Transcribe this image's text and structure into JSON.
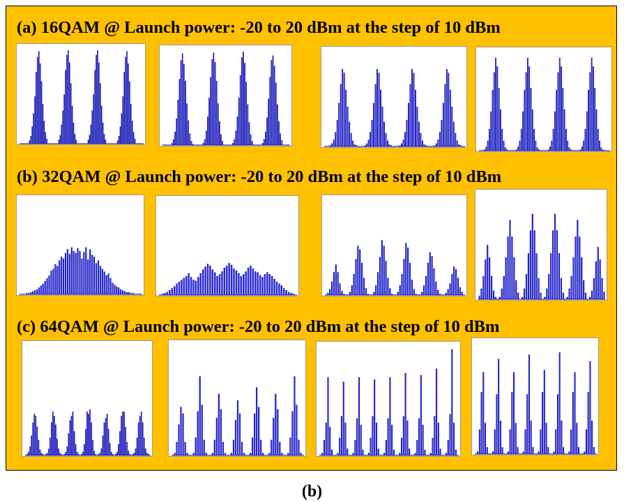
{
  "caption": "(b)",
  "colors": {
    "panel_bg": "#ffc000",
    "bar_fill": "#3333ff",
    "bar_stroke": "#00008b"
  },
  "rows": [
    {
      "title": "(a) 16QAM @ Launch power: -20 to 20 dBm at the step of 10 dBm"
    },
    {
      "title": "(b) 32QAM @ Launch power: -20 to 20 dBm at the step of 10 dBm"
    },
    {
      "title": "(c) 64QAM @ Launch power: -20 to 20 dBm at the step of 10 dBm"
    }
  ],
  "chart_data": [
    {
      "type": "bar",
      "title": "",
      "xlabel": "",
      "ylabel": "",
      "grid": false,
      "ylim": [
        0,
        1
      ],
      "values": [
        0,
        0,
        0,
        0,
        0,
        0,
        0,
        0.03,
        0.08,
        0.18,
        0.32,
        0.5,
        0.76,
        0.92,
        0.98,
        0.85,
        0.66,
        0.42,
        0.24,
        0.12,
        0.05,
        0,
        0,
        0,
        0,
        0,
        0,
        0,
        0,
        0.04,
        0.09,
        0.2,
        0.35,
        0.52,
        0.78,
        0.94,
        0.99,
        0.86,
        0.64,
        0.4,
        0.22,
        0.1,
        0.04,
        0,
        0,
        0,
        0,
        0,
        0,
        0,
        0,
        0.04,
        0.09,
        0.2,
        0.35,
        0.52,
        0.78,
        0.94,
        0.99,
        0.86,
        0.64,
        0.4,
        0.22,
        0.1,
        0.04,
        0,
        0,
        0,
        0,
        0,
        0,
        0,
        0,
        0.03,
        0.08,
        0.18,
        0.32,
        0.5,
        0.76,
        0.92,
        0.98,
        0.85,
        0.66,
        0.42,
        0.24,
        0.12,
        0.05,
        0,
        0,
        0,
        0,
        0,
        0
      ]
    },
    {
      "type": "bar",
      "title": "",
      "xlabel": "",
      "ylabel": "",
      "grid": false,
      "ylim": [
        0,
        1
      ],
      "values": [
        0,
        0,
        0,
        0,
        0,
        0,
        0.02,
        0.06,
        0.14,
        0.28,
        0.48,
        0.7,
        0.9,
        0.97,
        0.86,
        0.68,
        0.44,
        0.26,
        0.12,
        0.04,
        0.01,
        0,
        0,
        0,
        0,
        0,
        0,
        0.02,
        0.06,
        0.15,
        0.3,
        0.5,
        0.72,
        0.91,
        0.98,
        0.88,
        0.68,
        0.44,
        0.25,
        0.11,
        0.04,
        0,
        0,
        0,
        0,
        0,
        0,
        0.02,
        0.06,
        0.15,
        0.3,
        0.5,
        0.74,
        0.93,
        0.99,
        0.87,
        0.67,
        0.43,
        0.24,
        0.11,
        0.04,
        0,
        0,
        0,
        0,
        0,
        0,
        0.02,
        0.06,
        0.14,
        0.29,
        0.49,
        0.72,
        0.9,
        0.95,
        0.84,
        0.66,
        0.43,
        0.25,
        0.12,
        0.05,
        0,
        0,
        0,
        0,
        0
      ]
    },
    {
      "type": "bar",
      "title": "",
      "xlabel": "",
      "ylabel": "",
      "grid": false,
      "ylim": [
        0,
        1
      ],
      "values": [
        0,
        0,
        0,
        0.01,
        0.03,
        0.07,
        0.15,
        0.28,
        0.46,
        0.66,
        0.82,
        0.78,
        0.6,
        0.42,
        0.26,
        0.14,
        0.06,
        0.02,
        0.01,
        0,
        0,
        0,
        0,
        0.01,
        0.03,
        0.07,
        0.15,
        0.28,
        0.46,
        0.66,
        0.82,
        0.78,
        0.6,
        0.42,
        0.26,
        0.14,
        0.06,
        0.02,
        0.01,
        0,
        0,
        0,
        0,
        0.01,
        0.03,
        0.07,
        0.15,
        0.28,
        0.46,
        0.66,
        0.82,
        0.78,
        0.6,
        0.42,
        0.26,
        0.14,
        0.06,
        0.02,
        0.01,
        0,
        0,
        0,
        0,
        0.01,
        0.03,
        0.07,
        0.15,
        0.28,
        0.46,
        0.66,
        0.82,
        0.78,
        0.6,
        0.42,
        0.26,
        0.14,
        0.06,
        0.02,
        0.01,
        0,
        0
      ]
    },
    {
      "type": "bar",
      "title": "",
      "xlabel": "",
      "ylabel": "",
      "grid": false,
      "ylim": [
        0,
        1
      ],
      "values": [
        0,
        0,
        0,
        0.01,
        0.04,
        0.1,
        0.22,
        0.4,
        0.62,
        0.8,
        0.95,
        0.86,
        0.64,
        0.42,
        0.22,
        0.1,
        0.03,
        0.01,
        0,
        0,
        0,
        0,
        0,
        0.01,
        0.04,
        0.1,
        0.22,
        0.4,
        0.62,
        0.8,
        0.95,
        0.86,
        0.64,
        0.42,
        0.22,
        0.1,
        0.03,
        0.01,
        0,
        0,
        0,
        0,
        0,
        0.01,
        0.04,
        0.1,
        0.22,
        0.4,
        0.62,
        0.8,
        0.95,
        0.86,
        0.64,
        0.42,
        0.22,
        0.1,
        0.03,
        0.01,
        0,
        0,
        0,
        0,
        0,
        0.01,
        0.04,
        0.1,
        0.22,
        0.4,
        0.62,
        0.8,
        0.95,
        0.86,
        0.64,
        0.42,
        0.22,
        0.1,
        0.03,
        0.01,
        0,
        0,
        0,
        0
      ]
    },
    {
      "type": "bar",
      "title": "",
      "xlabel": "",
      "ylabel": "",
      "grid": false,
      "ylim": [
        0,
        1
      ],
      "values": [
        0,
        0,
        0,
        0.01,
        0.01,
        0.02,
        0.03,
        0.04,
        0.05,
        0.07,
        0.09,
        0.11,
        0.14,
        0.17,
        0.2,
        0.25,
        0.27,
        0.32,
        0.3,
        0.36,
        0.4,
        0.38,
        0.44,
        0.48,
        0.43,
        0.5,
        0.46,
        0.44,
        0.49,
        0.46,
        0.38,
        0.45,
        0.5,
        0.37,
        0.48,
        0.42,
        0.4,
        0.33,
        0.36,
        0.3,
        0.27,
        0.24,
        0.2,
        0.22,
        0.17,
        0.12,
        0.1,
        0.08,
        0.07,
        0.05,
        0.04,
        0.03,
        0.02,
        0.02,
        0.01,
        0.01,
        0,
        0,
        0,
        0
      ]
    },
    {
      "type": "bar",
      "title": "",
      "xlabel": "",
      "ylabel": "",
      "grid": false,
      "ylim": [
        0,
        1
      ],
      "values": [
        0,
        0.01,
        0.02,
        0.03,
        0.05,
        0.07,
        0.09,
        0.12,
        0.14,
        0.16,
        0.18,
        0.2,
        0.23,
        0.19,
        0.16,
        0.15,
        0.19,
        0.23,
        0.27,
        0.3,
        0.33,
        0.31,
        0.27,
        0.24,
        0.2,
        0.22,
        0.25,
        0.29,
        0.31,
        0.34,
        0.32,
        0.28,
        0.26,
        0.23,
        0.2,
        0.22,
        0.25,
        0.29,
        0.31,
        0.28,
        0.25,
        0.24,
        0.21,
        0.19,
        0.22,
        0.24,
        0.22,
        0.2,
        0.17,
        0.14,
        0.12,
        0.1,
        0.07,
        0.05,
        0.03,
        0.02,
        0.01,
        0
      ]
    },
    {
      "type": "bar",
      "title": "",
      "xlabel": "",
      "ylabel": "",
      "grid": false,
      "ylim": [
        0,
        1
      ],
      "values": [
        0,
        0.02,
        0.06,
        0.14,
        0.24,
        0.32,
        0.24,
        0.12,
        0.04,
        0.01,
        0,
        0,
        0.03,
        0.1,
        0.22,
        0.38,
        0.52,
        0.48,
        0.34,
        0.18,
        0.07,
        0.01,
        0,
        0,
        0.03,
        0.1,
        0.24,
        0.4,
        0.58,
        0.52,
        0.36,
        0.18,
        0.07,
        0.01,
        0,
        0,
        0.03,
        0.1,
        0.22,
        0.38,
        0.55,
        0.5,
        0.34,
        0.16,
        0.06,
        0.01,
        0,
        0,
        0.03,
        0.1,
        0.2,
        0.34,
        0.45,
        0.41,
        0.28,
        0.14,
        0.05,
        0.01,
        0,
        0,
        0.02,
        0.06,
        0.12,
        0.22,
        0.3,
        0.27,
        0.18,
        0.08,
        0.03,
        0
      ]
    },
    {
      "type": "bar",
      "title": "",
      "xlabel": "",
      "ylabel": "",
      "grid": false,
      "ylim": [
        0,
        1
      ],
      "values": [
        0.03,
        0.1,
        0.22,
        0.38,
        0.52,
        0.4,
        0.22,
        0.08,
        0.02,
        0,
        0.02,
        0.1,
        0.22,
        0.4,
        0.6,
        0.76,
        0.6,
        0.4,
        0.18,
        0.06,
        0,
        0.02,
        0.1,
        0.24,
        0.44,
        0.66,
        0.82,
        0.66,
        0.44,
        0.2,
        0.06,
        0,
        0.02,
        0.1,
        0.24,
        0.44,
        0.66,
        0.82,
        0.66,
        0.44,
        0.2,
        0.06,
        0,
        0.02,
        0.1,
        0.22,
        0.4,
        0.6,
        0.76,
        0.6,
        0.4,
        0.18,
        0.06,
        0,
        0.02,
        0.08,
        0.2,
        0.36,
        0.5,
        0.38,
        0.2,
        0.07
      ]
    },
    {
      "type": "bar",
      "title": "",
      "xlabel": "",
      "ylabel": "",
      "grid": false,
      "ylim": [
        0,
        1
      ],
      "values": [
        0,
        0.01,
        0.03,
        0.08,
        0.18,
        0.3,
        0.38,
        0.36,
        0.26,
        0.14,
        0.05,
        0.02,
        0.01,
        0,
        0.01,
        0.02,
        0.06,
        0.16,
        0.3,
        0.4,
        0.36,
        0.28,
        0.15,
        0.06,
        0.02,
        0.01,
        0,
        0.01,
        0.03,
        0.08,
        0.2,
        0.32,
        0.36,
        0.4,
        0.22,
        0.1,
        0.03,
        0.01,
        0,
        0.01,
        0.03,
        0.1,
        0.24,
        0.4,
        0.38,
        0.42,
        0.3,
        0.14,
        0.04,
        0.01,
        0,
        0.01,
        0.02,
        0.06,
        0.18,
        0.3,
        0.34,
        0.38,
        0.24,
        0.11,
        0.03,
        0.01,
        0,
        0.01,
        0.03,
        0.1,
        0.22,
        0.36,
        0.4,
        0.4,
        0.26,
        0.12,
        0.04,
        0.01,
        0,
        0.01,
        0.02,
        0.06,
        0.16,
        0.3,
        0.36,
        0.4,
        0.3,
        0.16,
        0.06,
        0.02,
        0.01,
        0
      ]
    },
    {
      "type": "bar",
      "title": "",
      "xlabel": "",
      "ylabel": "",
      "grid": false,
      "ylim": [
        0,
        1
      ],
      "values": [
        0,
        0.02,
        0.12,
        0.28,
        0.44,
        0.38,
        0.12,
        0.02,
        0,
        0,
        0.02,
        0.16,
        0.4,
        0.72,
        0.46,
        0.14,
        0.02,
        0,
        0,
        0.02,
        0.14,
        0.34,
        0.56,
        0.42,
        0.12,
        0.02,
        0,
        0,
        0.02,
        0.14,
        0.32,
        0.5,
        0.38,
        0.12,
        0.02,
        0,
        0,
        0.02,
        0.16,
        0.38,
        0.62,
        0.44,
        0.14,
        0.02,
        0,
        0,
        0.02,
        0.14,
        0.34,
        0.56,
        0.42,
        0.12,
        0.02,
        0,
        0,
        0.02,
        0.16,
        0.4,
        0.72,
        0.46,
        0.14,
        0.02,
        0
      ]
    },
    {
      "type": "bar",
      "title": "",
      "xlabel": "",
      "ylabel": "",
      "grid": false,
      "ylim": [
        0,
        1
      ],
      "values": [
        0,
        0.02,
        0.14,
        0.3,
        0.72,
        0.26,
        0.05,
        0,
        0,
        0.02,
        0.16,
        0.36,
        0.68,
        0.3,
        0.06,
        0,
        0,
        0.02,
        0.14,
        0.34,
        0.72,
        0.28,
        0.05,
        0,
        0,
        0.02,
        0.16,
        0.36,
        0.7,
        0.3,
        0.06,
        0,
        0,
        0.02,
        0.14,
        0.34,
        0.72,
        0.28,
        0.05,
        0,
        0,
        0.02,
        0.16,
        0.36,
        0.76,
        0.32,
        0.06,
        0,
        0,
        0.02,
        0.14,
        0.34,
        0.74,
        0.28,
        0.05,
        0,
        0,
        0.02,
        0.16,
        0.36,
        0.8,
        0.3,
        0.06,
        0,
        0,
        0.02,
        0.14,
        0.38,
        0.98,
        0.3,
        0.05,
        0
      ]
    },
    {
      "type": "bar",
      "title": "",
      "xlabel": "",
      "ylabel": "",
      "grid": false,
      "ylim": [
        0,
        1
      ],
      "values": [
        0,
        0.02,
        0.22,
        0.56,
        0.74,
        0.28,
        0.06,
        0,
        0,
        0.02,
        0.22,
        0.54,
        0.86,
        0.3,
        0.06,
        0,
        0,
        0.02,
        0.22,
        0.56,
        0.74,
        0.28,
        0.06,
        0,
        0,
        0.02,
        0.22,
        0.54,
        0.9,
        0.3,
        0.06,
        0,
        0,
        0.02,
        0.22,
        0.56,
        0.76,
        0.28,
        0.06,
        0,
        0,
        0.02,
        0.22,
        0.54,
        0.92,
        0.3,
        0.06,
        0,
        0,
        0.02,
        0.22,
        0.56,
        0.74,
        0.28,
        0.06,
        0,
        0,
        0.02,
        0.22,
        0.56,
        0.84,
        0.3,
        0.06,
        0
      ]
    }
  ]
}
